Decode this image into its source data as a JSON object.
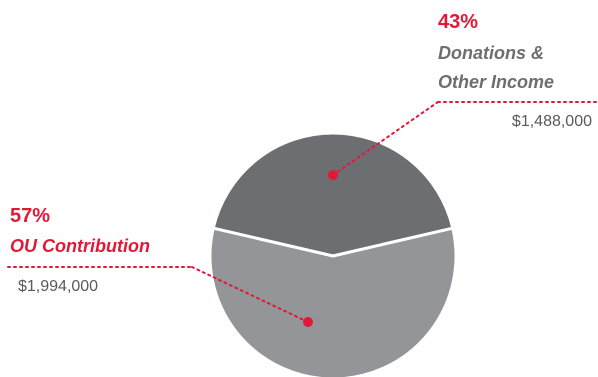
{
  "chart_data": {
    "type": "pie",
    "slices": [
      {
        "label": "Donations & Other Income",
        "label_lines": [
          "Donations &",
          "Other Income"
        ],
        "percent": "43%",
        "amount": "$1,488,000",
        "value": 1488000,
        "color": "#6d6e71"
      },
      {
        "label": "OU Contribution",
        "label_lines": [
          "OU Contribution"
        ],
        "percent": "57%",
        "amount": "$1,994,000",
        "value": 1994000,
        "color": "#939598"
      }
    ],
    "accent_color": "#e31837",
    "label_color": "#6d6e71",
    "amount_color": "#58595b"
  }
}
